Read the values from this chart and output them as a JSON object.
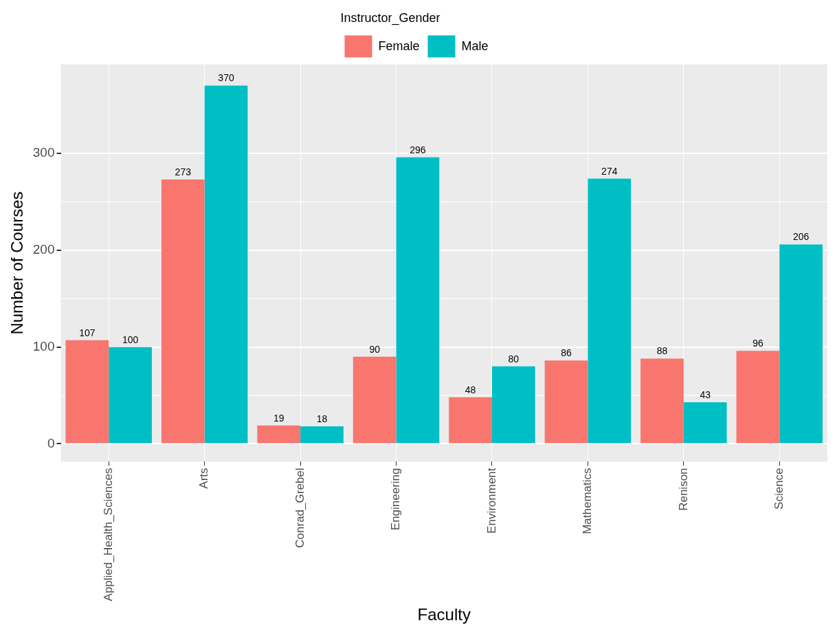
{
  "chart_data": {
    "type": "bar",
    "xlabel": "Faculty",
    "ylabel": "Number of Courses",
    "legend_title": "Instructor_Gender",
    "legend": "top",
    "categories": [
      "Applied_Health_Sciences",
      "Arts",
      "Conrad_Grebel",
      "Engineering",
      "Environment",
      "Mathematics",
      "Renison",
      "Science"
    ],
    "series": [
      {
        "name": "Female",
        "color": "#f8766d",
        "values": [
          107,
          273,
          19,
          90,
          48,
          86,
          88,
          96
        ]
      },
      {
        "name": "Male",
        "color": "#00bfc4",
        "values": [
          100,
          370,
          18,
          296,
          80,
          274,
          43,
          206
        ]
      }
    ],
    "ylim": [
      -18.5,
      392
    ],
    "yticks": [
      0,
      100,
      200,
      300
    ],
    "grid": true,
    "data_labels": true
  }
}
